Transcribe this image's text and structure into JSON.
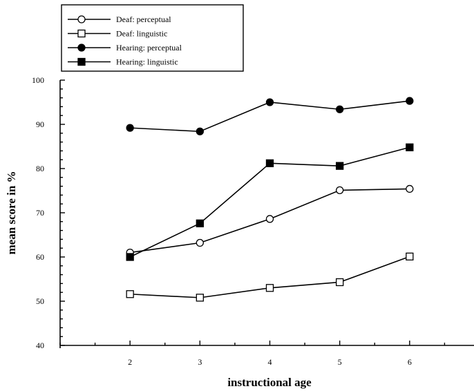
{
  "chart_data": {
    "type": "line",
    "title": "",
    "xlabel": "instructional age",
    "ylabel": "mean score in %",
    "x": [
      2,
      3,
      4,
      5,
      6
    ],
    "xlim": [
      1,
      7
    ],
    "ylim": [
      40,
      100
    ],
    "yticks": [
      40,
      50,
      60,
      70,
      80,
      90,
      100
    ],
    "xticks": [
      2,
      3,
      4,
      5,
      6
    ],
    "grid": false,
    "legend_position": "top-left",
    "series": [
      {
        "name": "Deaf: perceptual",
        "marker": "circle-open",
        "values": [
          61.0,
          63.2,
          68.6,
          75.1,
          75.4
        ]
      },
      {
        "name": "Deaf: linguistic",
        "marker": "square-open",
        "values": [
          51.6,
          50.8,
          53.0,
          54.3,
          60.1
        ]
      },
      {
        "name": "Hearing: perceptual",
        "marker": "circle-filled",
        "values": [
          89.2,
          88.4,
          95.0,
          93.4,
          95.3
        ]
      },
      {
        "name": "Hearing: linguistic",
        "marker": "square-filled",
        "values": [
          60.0,
          67.6,
          81.2,
          80.6,
          84.8
        ]
      }
    ]
  }
}
